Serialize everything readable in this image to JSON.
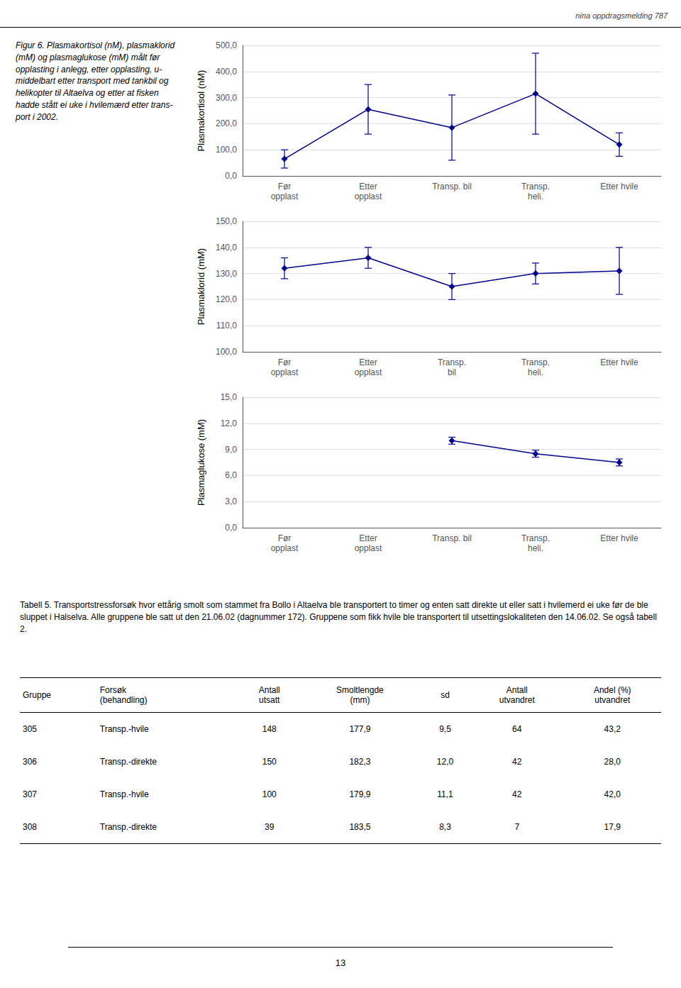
{
  "header_text": "nina oppdragsmelding 787",
  "caption": "Figur 6. Plasmakortisol (nM), plasmaklorid\n(mM) og plasmaglukose (mM) målt før\nopplasting i anlegg, etter opplasting, u-\nmiddelbart etter transport med tankbil og\nhelikopter til Altaelva og etter at fisken\nhadde stått ei uke i hvilemærd etter trans-\nport i 2002.",
  "chart_data": [
    {
      "type": "line",
      "ylabel": "Plasmakortisol (nM)",
      "categories": [
        "Før\nopplast",
        "Etter\nopplast",
        "Transp. bil",
        "Transp.\nheli.",
        "Etter hvile"
      ],
      "values": [
        65,
        255,
        185,
        315,
        120
      ],
      "yerr_lower": [
        35,
        95,
        125,
        155,
        45
      ],
      "yerr_upper": [
        35,
        95,
        125,
        155,
        45
      ],
      "ylim": [
        0,
        500
      ],
      "yticks": [
        {
          "value": 0,
          "label": "0,0"
        },
        {
          "value": 100,
          "label": "100,0"
        },
        {
          "value": 200,
          "label": "200,0"
        },
        {
          "value": 300,
          "label": "300,0"
        },
        {
          "value": 400,
          "label": "400,0"
        },
        {
          "value": 500,
          "label": "500,0"
        }
      ],
      "grid": true,
      "color": "#00008B",
      "marker": "diamond"
    },
    {
      "type": "line",
      "ylabel": "Plasmaklorid (mM)",
      "categories": [
        "Før\nopplast",
        "Etter\nopplast",
        "Transp.\nbil",
        "Transp.\nheli.",
        "Etter hvile"
      ],
      "values": [
        132,
        136,
        125,
        130,
        131
      ],
      "yerr_lower": [
        4,
        4,
        5,
        4,
        9
      ],
      "yerr_upper": [
        4,
        4,
        5,
        4,
        9
      ],
      "ylim": [
        100,
        150
      ],
      "yticks": [
        {
          "value": 100,
          "label": "100,0"
        },
        {
          "value": 110,
          "label": "110,0"
        },
        {
          "value": 120,
          "label": "120,0"
        },
        {
          "value": 130,
          "label": "130,0"
        },
        {
          "value": 140,
          "label": "140,0"
        },
        {
          "value": 150,
          "label": "150,0"
        }
      ],
      "grid": true,
      "color": "#00008B",
      "marker": "diamond"
    },
    {
      "type": "line",
      "ylabel": "Plasmaglukose (mM)",
      "categories": [
        "Før\nopplast",
        "Etter\nopplast",
        "Transp. bil",
        "Transp.\nheli.",
        "Etter hvile"
      ],
      "values": [
        null,
        null,
        10.0,
        8.5,
        7.5
      ],
      "yerr_lower": [
        null,
        null,
        0.4,
        0.4,
        0.4
      ],
      "yerr_upper": [
        null,
        null,
        0.4,
        0.4,
        0.4
      ],
      "ylim": [
        0,
        15
      ],
      "yticks": [
        {
          "value": 0,
          "label": "0,0"
        },
        {
          "value": 3,
          "label": "3,0"
        },
        {
          "value": 6,
          "label": "6,0"
        },
        {
          "value": 9,
          "label": "9,0"
        },
        {
          "value": 12,
          "label": "12,0"
        },
        {
          "value": 15,
          "label": "15,0"
        }
      ],
      "grid": true,
      "color": "#00008B",
      "marker": "diamond"
    }
  ],
  "table": {
    "title": "Tabell 5. Transportstressforsøk hvor ettårig smolt som stammet fra Bollo i Altaelva ble transportert to timer og enten satt direkte ut eller satt i hvilemerd ei uke før de ble sluppet i Halselva. Alle gruppene ble satt ut den 21.06.02 (dagnummer 172). Gruppene som fikk hvile ble transportert til utsettingslokaliteten den 14.06.02. Se også tabell 2.",
    "columns": [
      "Gruppe",
      "Forsøk\n(behandling)",
      "Antall\nutsatt",
      "Smoltlengde\n(mm)",
      "sd",
      "Antall\nutvandret",
      "Andel (%)\nutvandret"
    ],
    "rows": [
      [
        "305",
        "Transp.-hvile",
        "148",
        "177,9",
        "9,5",
        "64",
        "43,2"
      ],
      [
        "306",
        "Transp.-direkte",
        "150",
        "182,3",
        "12,0",
        "42",
        "28,0"
      ],
      [
        "307",
        "Transp.-hvile",
        "100",
        "179,9",
        "11,1",
        "42",
        "42,0"
      ],
      [
        "308",
        "Transp.-direkte",
        "39",
        "183,5",
        "8,3",
        "7",
        "17,9"
      ]
    ]
  },
  "page_number": "13"
}
